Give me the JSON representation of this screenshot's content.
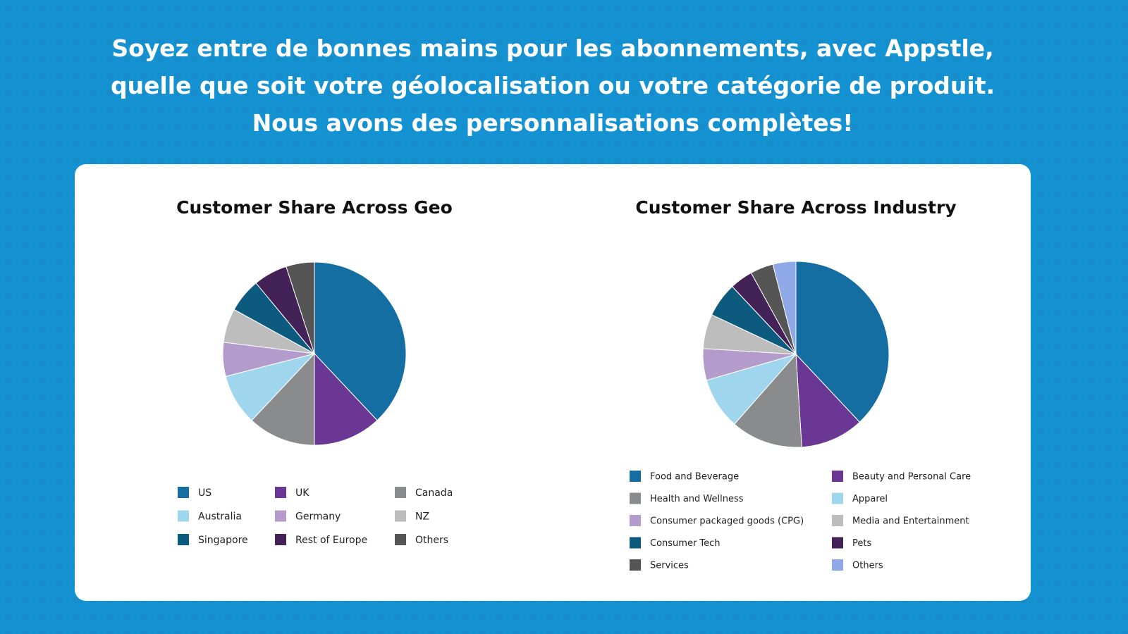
{
  "heading": [
    "Soyez entre de bonnes mains pour les abonnements, avec Appstle,",
    "quelle que soit votre géolocalisation ou votre catégorie de produit.",
    "Nous avons des personnalisations complètes!"
  ],
  "chart_data": [
    {
      "type": "pie",
      "title": "Customer Share Across Geo",
      "categories": [
        "US",
        "UK",
        "Canada",
        "Australia",
        "Germany",
        "NZ",
        "Singapore",
        "Rest of Europe",
        "Others"
      ],
      "values": [
        38,
        12,
        12,
        9,
        6,
        6,
        6,
        6,
        5
      ],
      "colors": [
        "#156ea1",
        "#6b3795",
        "#8a8b8d",
        "#9fd6ee",
        "#b39ccb",
        "#bdbdbd",
        "#0d5a7f",
        "#432258",
        "#555555"
      ],
      "legend_columns": 3
    },
    {
      "type": "pie",
      "title": "Customer Share Across Industry",
      "categories": [
        "Food and Beverage",
        "Beauty and Personal Care",
        "Health and Wellness",
        "Apparel",
        "Consumer packaged goods (CPG)",
        "Media and Entertainment",
        "Consumer Tech",
        "Pets",
        "Services",
        "Others"
      ],
      "values": [
        38,
        11,
        12.5,
        9,
        5.5,
        6,
        6,
        4,
        4,
        4
      ],
      "colors": [
        "#156ea1",
        "#6b3795",
        "#8a8b8d",
        "#9fd6ee",
        "#b39ccb",
        "#bdbdbd",
        "#0d5a7f",
        "#432258",
        "#555555",
        "#8fa8e6"
      ],
      "legend_columns": 2
    }
  ]
}
